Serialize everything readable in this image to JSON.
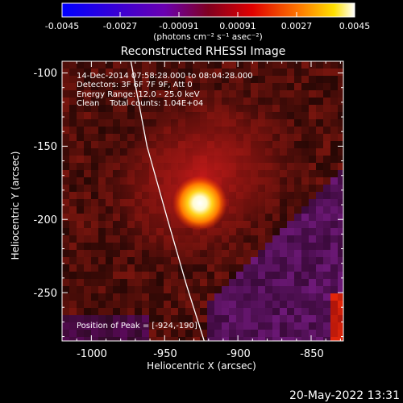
{
  "colorbar": {
    "ticks": [
      "-0.0045",
      "-0.0027",
      "-0.00091",
      "0.00091",
      "0.0027",
      "0.0045"
    ],
    "unit_label": "(photons cm⁻² s⁻¹ asec⁻²)",
    "vmin": -0.0045,
    "vmax": 0.0045
  },
  "image": {
    "title": "Reconstructed RHESSI Image",
    "annotations": [
      "14-Dec-2014 07:58:28.000 to 08:04:28.000",
      "Detectors: 3F 6F 7F 9F, Att 0",
      "Energy Range: 12.0 - 25.0 keV",
      "Clean    Total counts: 1.04E+04"
    ],
    "peak_label": "Position of Peak = [-924,-190]",
    "timestamp": "20-May-2022 13:31"
  },
  "chart_data": {
    "type": "heatmap",
    "title": "Reconstructed RHESSI Image",
    "xlabel": "Heliocentric X (arcsec)",
    "ylabel": "Heliocentric Y (arcsec)",
    "xlim": [
      -1020,
      -828
    ],
    "ylim": [
      -283,
      -92
    ],
    "xticks": [
      -1000,
      -950,
      -900,
      -850
    ],
    "yticks": [
      -100,
      -150,
      -200,
      -250
    ],
    "peak": {
      "x": -924,
      "y": -190
    },
    "limb_line": [
      [
        -973,
        -92
      ],
      [
        -962,
        -150
      ],
      [
        -948,
        -200
      ],
      [
        -935,
        -245
      ],
      [
        -923,
        -283
      ]
    ]
  }
}
